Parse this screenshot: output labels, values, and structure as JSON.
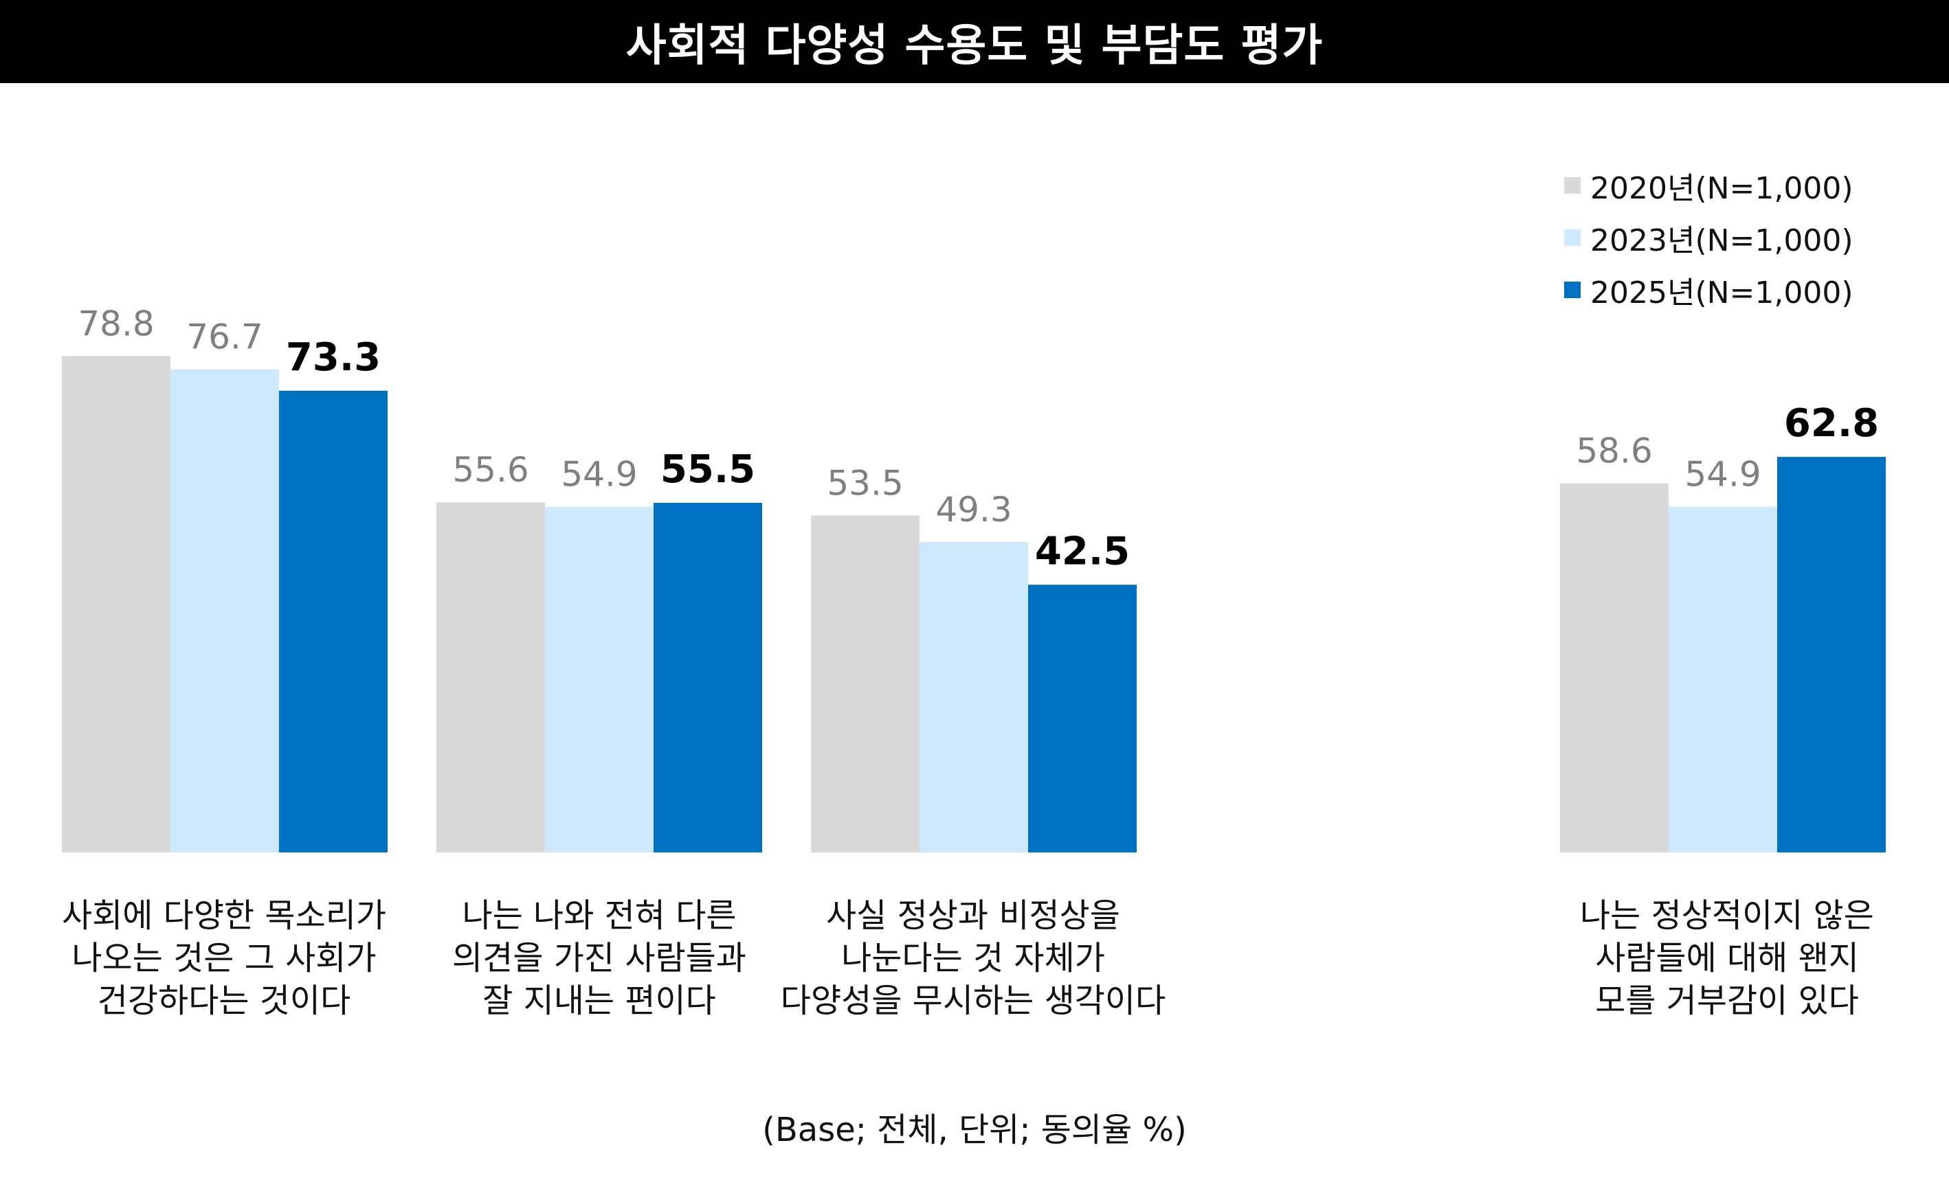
{
  "title": "사회적 다양성 수용도 및 부담도 평가",
  "footnote": "(Base; 전체, 단위; 동의율 %)",
  "colors": {
    "series_2020": "#d9d9d9",
    "series_2023": "#cfe9fc",
    "series_2025": "#0070c0",
    "label_prior": "#7f7f7f",
    "label_latest": "#000000"
  },
  "chart_data": {
    "type": "bar",
    "title": "사회적 다양성 수용도 및 부담도 평가",
    "categories": [
      "사회에 다양한 목소리가\n나오는 것은 그 사회가\n건강하다는 것이다",
      "나는 나와 전혀 다른\n의견을 가진 사람들과\n잘 지내는 편이다",
      "사실 정상과 비정상을\n나눈다는 것 자체가\n다양성을 무시하는 생각이다",
      "나는 정상적이지 않은\n사람들에 대해 왠지\n모를 거부감이 있다"
    ],
    "series": [
      {
        "name": "2020년(N=1,000)",
        "values": [
          78.8,
          55.6,
          53.5,
          58.6
        ]
      },
      {
        "name": "2023년(N=1,000)",
        "values": [
          76.7,
          54.9,
          49.3,
          54.9
        ]
      },
      {
        "name": "2025년(N=1,000)",
        "values": [
          73.3,
          55.5,
          42.5,
          62.8
        ]
      }
    ],
    "value_labels": [
      [
        "78.8",
        "55.6",
        "53.5",
        "58.6"
      ],
      [
        "76.7",
        "54.9",
        "49.3",
        "54.9"
      ],
      [
        "73.3",
        "55.5",
        "42.5",
        "62.8"
      ]
    ],
    "ylim": [
      0,
      100
    ],
    "grid": false,
    "legend_position": "top-right"
  }
}
